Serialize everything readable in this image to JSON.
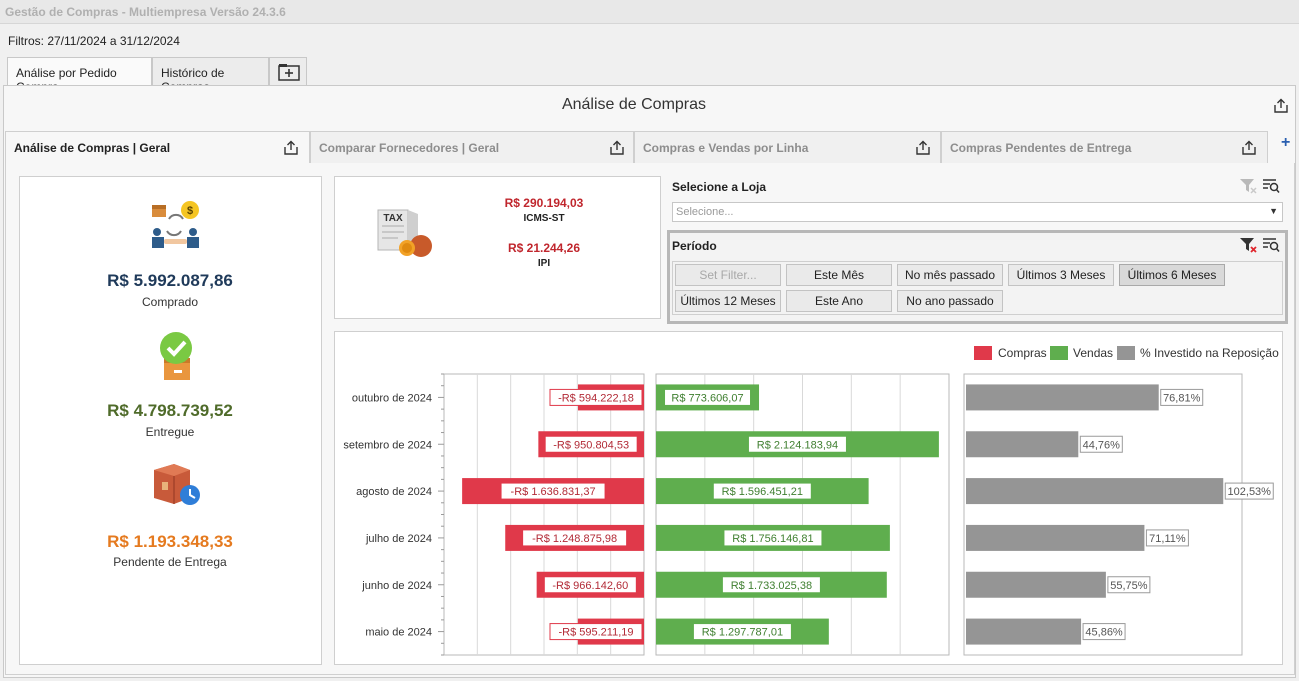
{
  "window": {
    "title": "Gestão de Compras - Multiempresa Versão 24.3.6"
  },
  "filters": {
    "text": "Filtros: 27/11/2024 a 31/12/2024"
  },
  "tabs": [
    {
      "label": "Análise por Pedido Compra"
    },
    {
      "label": "Histórico de Compras"
    }
  ],
  "main": {
    "title": "Análise de Compras"
  },
  "subtabs": [
    {
      "label": "Análise de Compras | Geral"
    },
    {
      "label": "Comparar Fornecedores | Geral"
    },
    {
      "label": "Compras e Vendas por Linha"
    },
    {
      "label": "Compras Pendentes de Entrega"
    }
  ],
  "kpis": {
    "comprado": {
      "value": "R$ 5.992.087,86",
      "label": "Comprado",
      "color": "#1f3a5a"
    },
    "entregue": {
      "value": "R$ 4.798.739,52",
      "label": "Entregue",
      "color": "#4f6b2a"
    },
    "pendente": {
      "value": "R$ 1.193.348,33",
      "label": "Pendente de Entrega",
      "color": "#e57a1f"
    }
  },
  "tax": {
    "icon_text": "TAX",
    "icms_st": {
      "value": "R$ 290.194,03",
      "label": "ICMS-ST"
    },
    "ipi": {
      "value": "R$ 21.244,26",
      "label": "IPI"
    }
  },
  "loja": {
    "label": "Selecione a Loja",
    "placeholder": "Selecione..."
  },
  "periodo": {
    "label": "Período",
    "buttons": [
      "Set Filter...",
      "Este Mês",
      "No mês passado",
      "Últimos 3 Meses",
      "Últimos 6 Meses",
      "Últimos 12 Meses",
      "Este Ano",
      "No ano passado"
    ],
    "selected": "Últimos 6 Meses"
  },
  "chart_data": {
    "type": "bar",
    "categories": [
      "outubro de 2024",
      "setembro de 2024",
      "agosto de 2024",
      "julho de 2024",
      "junho de 2024",
      "maio de 2024"
    ],
    "series": [
      {
        "name": "Compras",
        "color": "#e0394a",
        "values": [
          -594222.18,
          -950804.53,
          -1636831.37,
          -1248875.98,
          -966142.6,
          -595211.19
        ],
        "labels": [
          "-R$ 594.222,18",
          "-R$ 950.804,53",
          "-R$ 1.636.831,37",
          "-R$ 1.248.875,98",
          "-R$ 966.142,60",
          "-R$ 595.211,19"
        ]
      },
      {
        "name": "Vendas",
        "color": "#5fae4e",
        "values": [
          773606.07,
          2124183.94,
          1596451.21,
          1756146.81,
          1733025.38,
          1297787.01
        ],
        "labels": [
          "R$ 773.606,07",
          "R$ 2.124.183,94",
          "R$ 1.596.451,21",
          "R$ 1.756.146,81",
          "R$ 1.733.025,38",
          "R$ 1.297.787,01"
        ]
      },
      {
        "name": "% Investido na Reposição",
        "color": "#959595",
        "values": [
          76.81,
          44.76,
          102.53,
          71.11,
          55.75,
          45.86
        ],
        "labels": [
          "76,81%",
          "44,76%",
          "102,53%",
          "71,11%",
          "55,75%",
          "45,86%"
        ]
      }
    ],
    "legend_position": "top-right",
    "grid": true
  }
}
